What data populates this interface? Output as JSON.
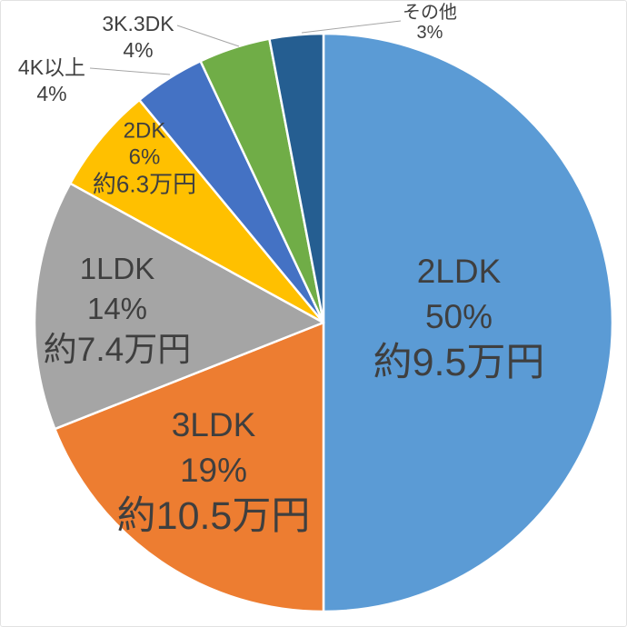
{
  "chart_data": {
    "type": "pie",
    "title": "",
    "legend": "none",
    "direction": "clockwise",
    "start_angle_deg": 0,
    "background": "#FFFFFF",
    "slice_border_color": "#FFFFFF",
    "label_color": "#3F3F3F",
    "leader_line_color": "#A6A6A6",
    "categories": [
      "2LDK",
      "3LDK",
      "1LDK",
      "2DK",
      "4K以上",
      "3K.3DK",
      "その他"
    ],
    "values": [
      50,
      19,
      14,
      6,
      4,
      4,
      3
    ],
    "percent_labels": [
      "50%",
      "19%",
      "14%",
      "6%",
      "4%",
      "4%",
      "3%"
    ],
    "rent_labels": [
      "約9.5万円",
      "約10.5万円",
      "約7.4万円",
      "約6.3万円",
      "",
      "",
      ""
    ],
    "colors": [
      "#5B9BD5",
      "#ED7D31",
      "#A5A5A5",
      "#FFC000",
      "#4472C4",
      "#70AD47",
      "#255E91"
    ],
    "label_placement": [
      "inside",
      "inside",
      "inside",
      "inside",
      "outside",
      "outside",
      "outside"
    ]
  }
}
